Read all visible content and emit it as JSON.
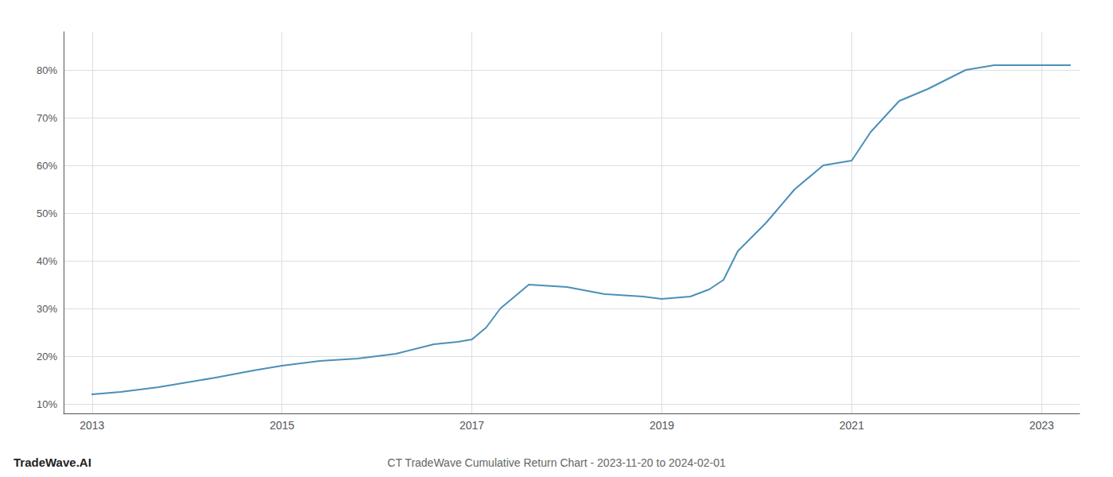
{
  "chart_data": {
    "type": "line",
    "title": "CT TradeWave Cumulative Return Chart - 2023-11-20 to 2024-02-01",
    "annotations": [
      "TradeWave.AI"
    ],
    "color": "#4a90b8",
    "x": [
      2013.0,
      2013.3,
      2013.7,
      2014.0,
      2014.3,
      2014.7,
      2015.0,
      2015.4,
      2015.8,
      2016.2,
      2016.6,
      2016.85,
      2017.0,
      2017.15,
      2017.3,
      2017.6,
      2018.0,
      2018.4,
      2018.8,
      2019.0,
      2019.3,
      2019.5,
      2019.65,
      2019.8,
      2020.1,
      2020.4,
      2020.7,
      2021.0,
      2021.2,
      2021.5,
      2021.8,
      2022.0,
      2022.2,
      2022.5,
      2022.75,
      2023.0,
      2023.3
    ],
    "values": [
      12.0,
      12.5,
      13.5,
      14.5,
      15.5,
      17.0,
      18.0,
      19.0,
      19.5,
      20.5,
      22.5,
      23.0,
      23.5,
      26.0,
      30.0,
      35.0,
      34.5,
      33.0,
      32.5,
      32.0,
      32.5,
      34.0,
      36.0,
      42.0,
      48.0,
      55.0,
      60.0,
      61.0,
      67.0,
      73.5,
      76.0,
      78.0,
      80.0,
      81.0,
      81.0,
      81.0,
      81.0
    ],
    "xlim": [
      2012.7,
      2023.4
    ],
    "ylim": [
      8,
      88
    ],
    "xticks": [
      2013,
      2015,
      2017,
      2019,
      2021,
      2023
    ],
    "yticks": [
      {
        "value": 10,
        "label": "10%"
      },
      {
        "value": 20,
        "label": "20%"
      },
      {
        "value": 30,
        "label": "30%"
      },
      {
        "value": 40,
        "label": "40%"
      },
      {
        "value": 50,
        "label": "50%"
      },
      {
        "value": 60,
        "label": "60%"
      },
      {
        "value": 70,
        "label": "70%"
      },
      {
        "value": 80,
        "label": "80%"
      }
    ],
    "grid": true
  }
}
